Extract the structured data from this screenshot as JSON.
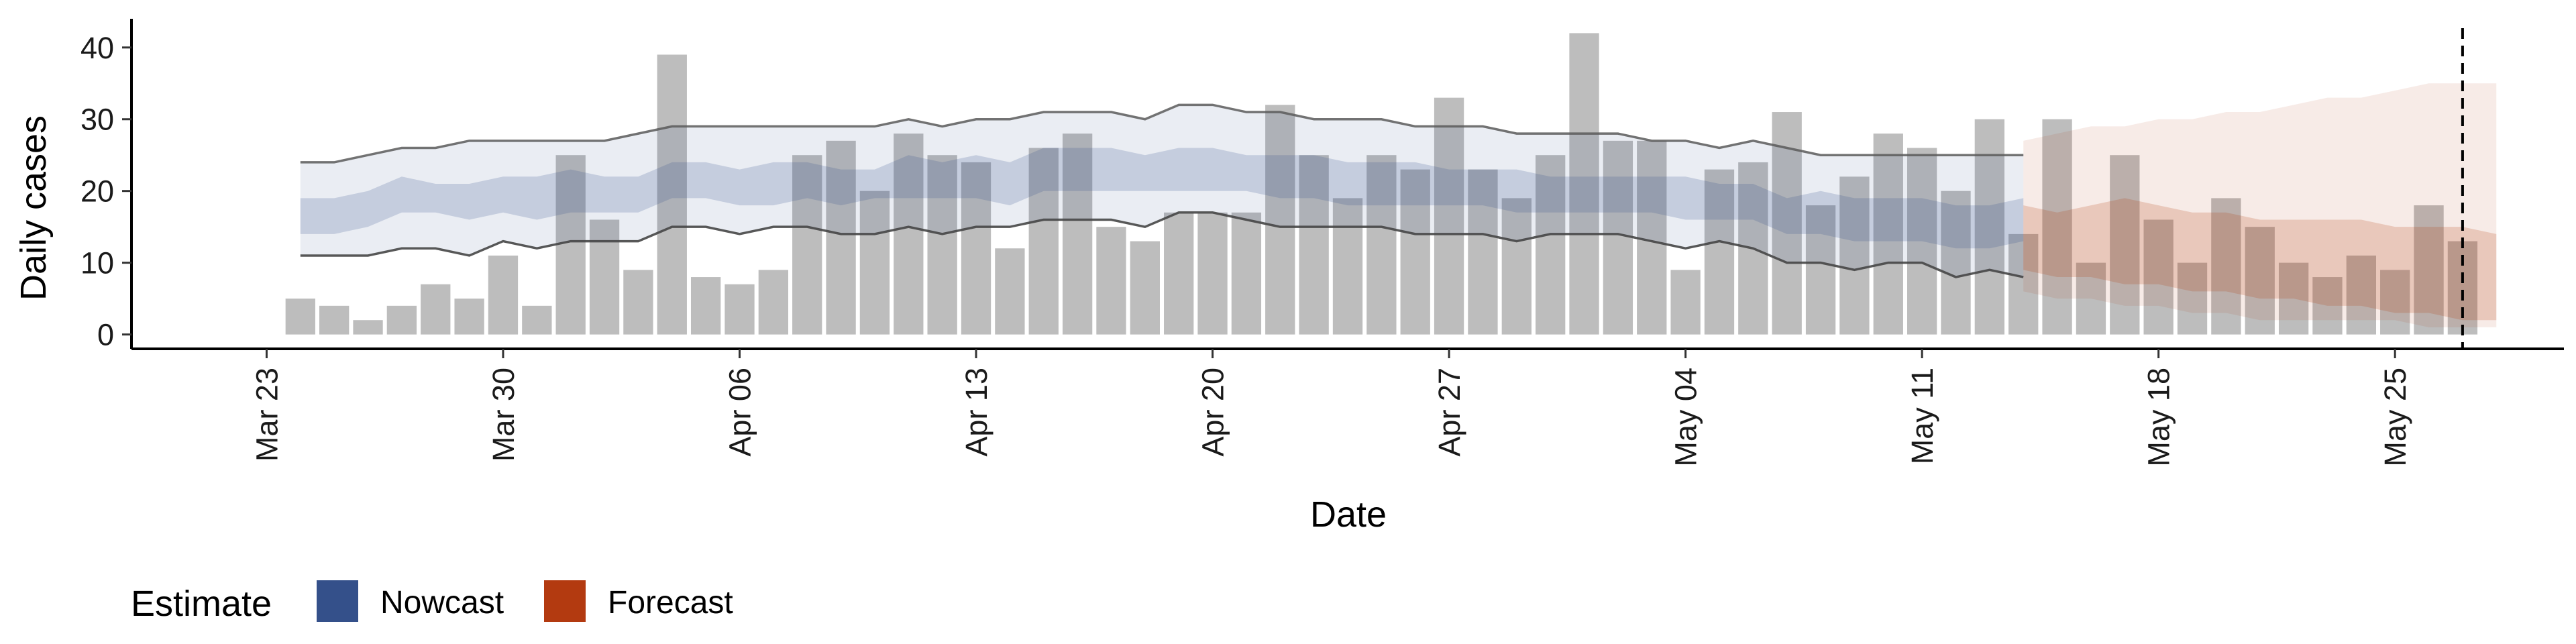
{
  "chart_data": {
    "type": "bar",
    "xlabel": "Date",
    "ylabel": "Daily cases",
    "ylim": [
      -2,
      44
    ],
    "x_range": [
      "2020-03-19",
      "2020-05-30"
    ],
    "y_ticks": [
      0,
      10,
      20,
      30,
      40
    ],
    "x_ticks": [
      {
        "date": "2020-03-23",
        "label": "Mar 23"
      },
      {
        "date": "2020-03-30",
        "label": "Mar 30"
      },
      {
        "date": "2020-04-06",
        "label": "Apr 06"
      },
      {
        "date": "2020-04-13",
        "label": "Apr 13"
      },
      {
        "date": "2020-04-20",
        "label": "Apr 20"
      },
      {
        "date": "2020-04-27",
        "label": "Apr 27"
      },
      {
        "date": "2020-05-04",
        "label": "May 04"
      },
      {
        "date": "2020-05-11",
        "label": "May 11"
      },
      {
        "date": "2020-05-18",
        "label": "May 18"
      },
      {
        "date": "2020-05-25",
        "label": "May 25"
      }
    ],
    "grid": false,
    "bar_color": "#bdbdbd",
    "cases_start_date": "2020-03-24",
    "cases": [
      5,
      4,
      2,
      4,
      7,
      5,
      11,
      4,
      25,
      16,
      9,
      39,
      8,
      7,
      9,
      25,
      27,
      20,
      28,
      25,
      24,
      12,
      26,
      28,
      15,
      13,
      17,
      17,
      17,
      32,
      25,
      19,
      25,
      23,
      33,
      23,
      19,
      25,
      42,
      27,
      27,
      9,
      23,
      24,
      31,
      18,
      22,
      28,
      26,
      20,
      30,
      14,
      30,
      10,
      25,
      16,
      10,
      19,
      15,
      10,
      8,
      11,
      9,
      18,
      13
    ],
    "vline_date": "2020-05-27",
    "series": [
      {
        "name": "Nowcast",
        "color": "#34508a",
        "start_date": "2020-03-24",
        "outer_lower": [
          11,
          11,
          11,
          12,
          12,
          11,
          13,
          12,
          13,
          13,
          13,
          15,
          15,
          14,
          15,
          15,
          14,
          14,
          15,
          14,
          15,
          15,
          16,
          16,
          16,
          15,
          17,
          17,
          16,
          15,
          15,
          15,
          15,
          14,
          14,
          14,
          13,
          14,
          14,
          14,
          13,
          12,
          13,
          12,
          10,
          10,
          9,
          10,
          10,
          8,
          9,
          8
        ],
        "outer_upper": [
          24,
          24,
          25,
          26,
          26,
          27,
          27,
          27,
          27,
          27,
          28,
          29,
          29,
          29,
          29,
          29,
          29,
          29,
          30,
          29,
          30,
          30,
          31,
          31,
          31,
          30,
          32,
          32,
          31,
          31,
          30,
          30,
          30,
          29,
          29,
          29,
          28,
          28,
          28,
          28,
          27,
          27,
          26,
          27,
          26,
          25,
          25,
          25,
          25,
          25,
          25,
          25
        ],
        "inner_lower": [
          14,
          14,
          15,
          17,
          17,
          16,
          17,
          16,
          17,
          17,
          17,
          19,
          19,
          18,
          18,
          19,
          18,
          19,
          19,
          19,
          19,
          18,
          20,
          20,
          20,
          20,
          20,
          20,
          20,
          19,
          19,
          18,
          18,
          18,
          18,
          18,
          17,
          17,
          17,
          17,
          17,
          16,
          16,
          16,
          14,
          14,
          13,
          13,
          13,
          12,
          12,
          13
        ],
        "inner_upper": [
          19,
          19,
          20,
          22,
          21,
          21,
          22,
          22,
          23,
          22,
          22,
          24,
          24,
          23,
          24,
          24,
          23,
          23,
          25,
          24,
          25,
          24,
          26,
          26,
          26,
          25,
          26,
          26,
          25,
          25,
          25,
          24,
          24,
          24,
          23,
          23,
          23,
          22,
          22,
          22,
          22,
          22,
          21,
          21,
          19,
          20,
          19,
          19,
          19,
          18,
          18,
          19
        ]
      },
      {
        "name": "Forecast",
        "color": "#b33a10",
        "start_date": "2020-05-14",
        "outer_lower": [
          6,
          5,
          5,
          4,
          4,
          3,
          3,
          2,
          2,
          2,
          2,
          2,
          1,
          1,
          1
        ],
        "outer_upper": [
          27,
          28,
          29,
          29,
          30,
          30,
          31,
          31,
          32,
          33,
          33,
          34,
          35,
          35,
          35
        ],
        "inner_lower": [
          9,
          8,
          8,
          7,
          7,
          6,
          6,
          5,
          5,
          4,
          4,
          3,
          3,
          2,
          2
        ],
        "inner_upper": [
          18,
          17,
          18,
          19,
          18,
          17,
          17,
          16,
          16,
          16,
          16,
          15,
          15,
          15,
          14
        ]
      }
    ],
    "legend": {
      "title": "Estimate",
      "position": "bottom-left",
      "entries": [
        {
          "label": "Nowcast",
          "color": "#34508a"
        },
        {
          "label": "Forecast",
          "color": "#b33a10"
        }
      ]
    }
  }
}
